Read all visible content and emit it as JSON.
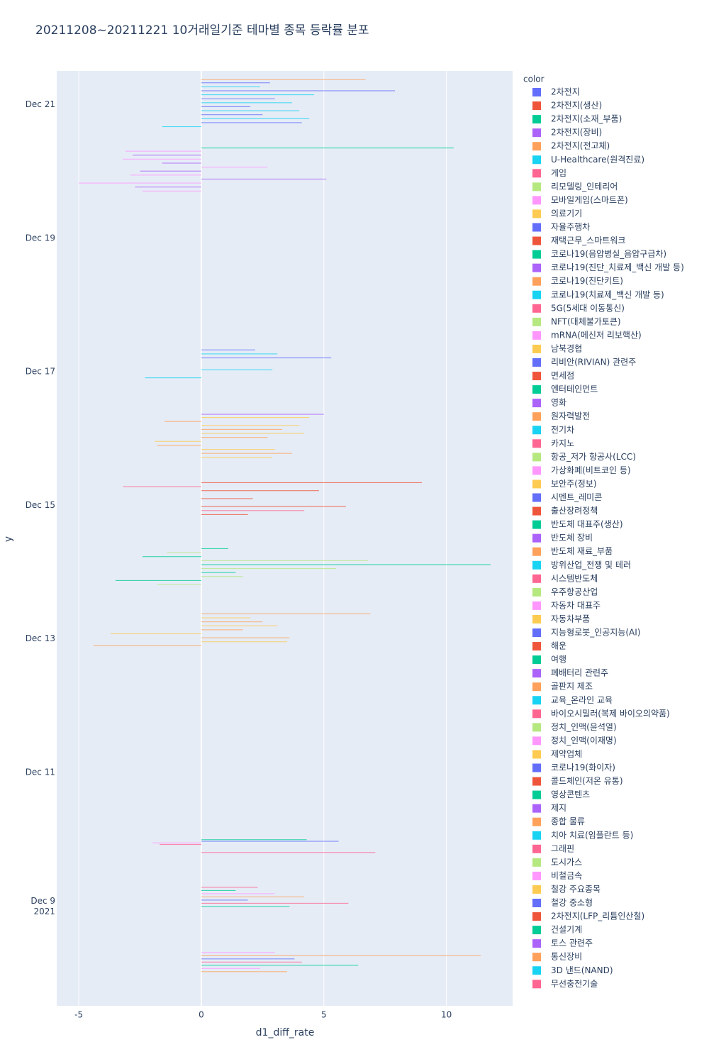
{
  "chart_data": {
    "type": "bar",
    "orientation": "h",
    "barmode": "group",
    "title": "20211208~20211221 10거래일기준 테마별 종목 등락률 분포",
    "x_label": "d1_diff_rate",
    "y_label": "y",
    "legend_title": "color",
    "dates": [
      "2021-12-08",
      "2021-12-09",
      "2021-12-10",
      "2021-12-13",
      "2021-12-14",
      "2021-12-15",
      "2021-12-16",
      "2021-12-17",
      "2021-12-20",
      "2021-12-21"
    ],
    "xlim": [
      -5.9,
      12.7
    ],
    "xticks": [
      -5,
      0,
      5,
      10
    ],
    "grid": true,
    "ylim": [
      "2021-12-07T12:00:00Z",
      "2021-12-21T12:00:00Z"
    ],
    "yticks": [
      {
        "value": "2021-12-09",
        "label": "Dec 9\n2021"
      },
      {
        "value": "2021-12-11",
        "label": "Dec 11"
      },
      {
        "value": "2021-12-13",
        "label": "Dec 13"
      },
      {
        "value": "2021-12-15",
        "label": "Dec 15"
      },
      {
        "value": "2021-12-17",
        "label": "Dec 17"
      },
      {
        "value": "2021-12-19",
        "label": "Dec 19"
      },
      {
        "value": "2021-12-21",
        "label": "Dec 21"
      }
    ],
    "legend_position": "right",
    "colorway": [
      "#636efa",
      "#EF553B",
      "#00cc96",
      "#ab63fa",
      "#FFA15A",
      "#19d3f3",
      "#FF6692",
      "#B6E880",
      "#FF97FF",
      "#FECB52"
    ],
    "series": [
      {
        "name": "2차전지",
        "values": [
          null,
          null,
          null,
          null,
          null,
          null,
          null,
          null,
          null,
          null
        ]
      },
      {
        "name": "2차전지(생산)",
        "values": [
          null,
          null,
          null,
          null,
          null,
          null,
          null,
          null,
          null,
          null
        ]
      },
      {
        "name": "2차전지(소재_부품)",
        "values": [
          null,
          null,
          null,
          null,
          null,
          null,
          null,
          null,
          null,
          null
        ]
      },
      {
        "name": "2차전지(장비)",
        "values": [
          null,
          null,
          null,
          null,
          null,
          null,
          null,
          null,
          null,
          null
        ]
      },
      {
        "name": "2차전지(전고체)",
        "values": [
          null,
          null,
          null,
          null,
          null,
          null,
          null,
          null,
          null,
          null
        ]
      },
      {
        "name": "U-Healthcare(원격진료)",
        "values": [
          null,
          null,
          null,
          null,
          null,
          null,
          null,
          null,
          null,
          -1.6
        ]
      },
      {
        "name": "게임",
        "values": [
          null,
          null,
          null,
          null,
          null,
          null,
          null,
          null,
          null,
          null
        ]
      },
      {
        "name": "리모델링_인테리어",
        "values": [
          null,
          null,
          null,
          null,
          null,
          null,
          null,
          null,
          null,
          null
        ]
      },
      {
        "name": "모바일게임(스마트폰)",
        "values": [
          null,
          null,
          null,
          null,
          null,
          null,
          null,
          null,
          -2.4,
          null
        ]
      },
      {
        "name": "의료기기",
        "values": [
          null,
          null,
          null,
          null,
          null,
          null,
          2.9,
          null,
          null,
          null
        ]
      },
      {
        "name": "자율주행차",
        "values": [
          null,
          null,
          null,
          null,
          null,
          null,
          null,
          null,
          null,
          4.1
        ]
      },
      {
        "name": "재택근무_스마트워크",
        "values": [
          null,
          null,
          null,
          null,
          null,
          null,
          null,
          null,
          null,
          null
        ]
      },
      {
        "name": "코로나19(음압병실_음압구급차)",
        "values": [
          null,
          null,
          null,
          null,
          null,
          null,
          null,
          null,
          null,
          null
        ]
      },
      {
        "name": "코로나19(진단_치료제_백신 개발 등)",
        "values": [
          null,
          null,
          null,
          null,
          null,
          null,
          null,
          null,
          -2.7,
          null
        ]
      },
      {
        "name": "코로나19(진단키트)",
        "values": [
          null,
          null,
          null,
          null,
          null,
          null,
          3.7,
          null,
          null,
          null
        ]
      },
      {
        "name": "코로나19(치료제_백신 개발 등)",
        "values": [
          null,
          null,
          null,
          null,
          null,
          null,
          null,
          null,
          null,
          4.4
        ]
      },
      {
        "name": "5G(5세대 이동통신)",
        "values": [
          null,
          null,
          7.1,
          null,
          null,
          null,
          null,
          null,
          null,
          null
        ]
      },
      {
        "name": "NFT(대체불가토큰)",
        "values": [
          null,
          null,
          null,
          null,
          -1.8,
          null,
          null,
          null,
          null,
          null
        ]
      },
      {
        "name": "mRNA(메신저 리보핵산)",
        "values": [
          null,
          null,
          null,
          null,
          null,
          null,
          null,
          null,
          -5.0,
          null
        ]
      },
      {
        "name": "남북경협",
        "values": [
          null,
          null,
          null,
          null,
          null,
          null,
          3.0,
          null,
          null,
          null
        ]
      },
      {
        "name": "리비안(RIVIAN) 관련주",
        "values": [
          null,
          null,
          null,
          null,
          null,
          null,
          null,
          null,
          null,
          2.5
        ]
      },
      {
        "name": "면세점",
        "values": [
          null,
          null,
          null,
          null,
          null,
          1.9,
          null,
          null,
          null,
          null
        ]
      },
      {
        "name": "엔터테인먼트",
        "values": [
          null,
          null,
          null,
          null,
          -3.5,
          null,
          null,
          null,
          null,
          null
        ]
      },
      {
        "name": "영화",
        "values": [
          null,
          null,
          null,
          null,
          null,
          null,
          null,
          null,
          5.1,
          null
        ]
      },
      {
        "name": "원자력발전",
        "values": [
          null,
          null,
          null,
          -4.4,
          null,
          null,
          -1.8,
          null,
          null,
          null
        ]
      },
      {
        "name": "전기차",
        "values": [
          null,
          null,
          null,
          null,
          null,
          null,
          null,
          -2.3,
          null,
          4.0
        ]
      },
      {
        "name": "카지노",
        "values": [
          null,
          null,
          -1.7,
          null,
          null,
          4.2,
          null,
          null,
          null,
          null
        ]
      },
      {
        "name": "항공_저가 항공사(LCC)",
        "values": [
          null,
          null,
          null,
          null,
          1.7,
          null,
          null,
          null,
          null,
          null
        ]
      },
      {
        "name": "가상화폐(비트코인 등)",
        "values": [
          null,
          null,
          -2.0,
          null,
          null,
          null,
          null,
          null,
          -2.9,
          null
        ]
      },
      {
        "name": "보안주(정보)",
        "values": [
          null,
          null,
          null,
          3.5,
          null,
          null,
          -1.9,
          null,
          null,
          null
        ]
      },
      {
        "name": "시멘트_레미콘",
        "values": [
          null,
          null,
          5.6,
          null,
          null,
          null,
          null,
          null,
          null,
          2.0
        ]
      },
      {
        "name": "출산장려정책",
        "values": [
          null,
          null,
          null,
          null,
          null,
          5.9,
          null,
          null,
          null,
          null
        ]
      },
      {
        "name": "반도체 대표주(생산)",
        "values": [
          null,
          3.6,
          4.3,
          null,
          1.4,
          null,
          null,
          null,
          null,
          null
        ]
      },
      {
        "name": "반도체 장비",
        "values": [
          null,
          null,
          null,
          null,
          null,
          null,
          null,
          null,
          -2.5,
          null
        ]
      },
      {
        "name": "반도체 재료_부품",
        "values": [
          3.5,
          null,
          null,
          3.6,
          null,
          null,
          2.7,
          null,
          null,
          null
        ]
      },
      {
        "name": "방위산업_전쟁 및 테러",
        "values": [
          null,
          null,
          null,
          null,
          null,
          null,
          null,
          2.9,
          null,
          3.7
        ]
      },
      {
        "name": "시스템반도체",
        "values": [
          null,
          6.0,
          null,
          null,
          null,
          null,
          null,
          null,
          null,
          null
        ]
      },
      {
        "name": "우주항공산업",
        "values": [
          null,
          null,
          null,
          null,
          5.5,
          null,
          null,
          null,
          null,
          null
        ]
      },
      {
        "name": "자동차 대표주",
        "values": [
          2.4,
          null,
          null,
          null,
          null,
          null,
          null,
          null,
          2.7,
          null
        ]
      },
      {
        "name": "자동차부품",
        "values": [
          null,
          null,
          null,
          -3.7,
          null,
          null,
          4.2,
          null,
          null,
          null
        ]
      },
      {
        "name": "지능형로봇_인공지능(AI)",
        "values": [
          null,
          1.9,
          null,
          null,
          null,
          null,
          null,
          null,
          null,
          3.0
        ]
      },
      {
        "name": "해운",
        "values": [
          null,
          null,
          null,
          null,
          null,
          2.1,
          null,
          null,
          null,
          null
        ]
      },
      {
        "name": "여행",
        "values": [
          6.4,
          null,
          null,
          null,
          11.8,
          null,
          null,
          null,
          null,
          null
        ]
      },
      {
        "name": "폐배터리 관련주",
        "values": [
          null,
          null,
          null,
          null,
          null,
          null,
          null,
          null,
          -1.6,
          null
        ]
      },
      {
        "name": "골판지 제조",
        "values": [
          null,
          4.2,
          null,
          1.7,
          null,
          null,
          3.3,
          null,
          null,
          null
        ]
      },
      {
        "name": "교육_온라인 교육",
        "values": [
          null,
          null,
          null,
          null,
          null,
          null,
          null,
          null,
          null,
          4.6
        ]
      },
      {
        "name": "바이오시밀러(복제 바이오의약품)",
        "values": [
          4.1,
          null,
          null,
          null,
          null,
          null,
          null,
          null,
          null,
          null
        ]
      },
      {
        "name": "정치_인맥(윤석열)",
        "values": [
          null,
          null,
          null,
          null,
          6.8,
          null,
          null,
          null,
          null,
          null
        ]
      },
      {
        "name": "정치_인맥(이재명)",
        "values": [
          null,
          3.0,
          null,
          null,
          null,
          null,
          null,
          null,
          -3.2,
          null
        ]
      },
      {
        "name": "제약업체",
        "values": [
          null,
          null,
          null,
          3.1,
          null,
          null,
          4.0,
          null,
          null,
          null
        ]
      },
      {
        "name": "코로나19(화이자)",
        "values": [
          3.8,
          null,
          null,
          null,
          null,
          null,
          null,
          5.3,
          null,
          7.9
        ]
      },
      {
        "name": "콜드체인(저온 유통)",
        "values": [
          null,
          null,
          null,
          null,
          null,
          4.8,
          null,
          null,
          null,
          null
        ]
      },
      {
        "name": "영상콘텐츠",
        "values": [
          null,
          1.4,
          null,
          null,
          -2.4,
          null,
          null,
          null,
          null,
          null
        ]
      },
      {
        "name": "제지",
        "values": [
          null,
          null,
          null,
          null,
          null,
          null,
          null,
          null,
          -2.8,
          null
        ]
      },
      {
        "name": "종합 물류",
        "values": [
          11.4,
          null,
          null,
          2.5,
          null,
          null,
          -1.5,
          null,
          null,
          null
        ]
      },
      {
        "name": "치아 치료(임플란트 등)",
        "values": [
          null,
          null,
          null,
          null,
          null,
          null,
          null,
          3.1,
          null,
          2.4
        ]
      },
      {
        "name": "그래핀",
        "values": [
          null,
          2.3,
          null,
          null,
          null,
          -3.2,
          null,
          null,
          null,
          null
        ]
      },
      {
        "name": "도시가스",
        "values": [
          null,
          null,
          null,
          null,
          -1.4,
          null,
          null,
          null,
          null,
          null
        ]
      },
      {
        "name": "비철금속",
        "values": [
          3.0,
          null,
          null,
          null,
          null,
          null,
          null,
          null,
          -3.1,
          null
        ]
      },
      {
        "name": "철강 주요종목",
        "values": [
          null,
          null,
          null,
          2.0,
          null,
          null,
          4.4,
          null,
          null,
          null
        ]
      },
      {
        "name": "철강 중소형",
        "values": [
          null,
          null,
          null,
          null,
          null,
          null,
          null,
          2.2,
          null,
          2.8
        ]
      },
      {
        "name": "2차전지(LFP_리튬인산철)",
        "values": [
          null,
          null,
          null,
          null,
          null,
          9.0,
          null,
          null,
          null,
          null
        ]
      },
      {
        "name": "건설기계",
        "values": [
          null,
          null,
          null,
          null,
          1.1,
          null,
          null,
          null,
          10.3,
          null
        ]
      },
      {
        "name": "토스 관련주",
        "values": [
          null,
          null,
          null,
          null,
          null,
          null,
          5.0,
          null,
          null,
          null
        ]
      },
      {
        "name": "통신장비",
        "values": [
          null,
          null,
          null,
          6.9,
          null,
          null,
          null,
          null,
          null,
          6.7
        ]
      },
      {
        "name": "3D 낸드(NAND)",
        "values": [
          null,
          null,
          null,
          null,
          null,
          null,
          null,
          null,
          null,
          null
        ]
      },
      {
        "name": "무선충전기술",
        "values": [
          null,
          null,
          null,
          null,
          null,
          null,
          null,
          null,
          null,
          null
        ]
      }
    ]
  }
}
